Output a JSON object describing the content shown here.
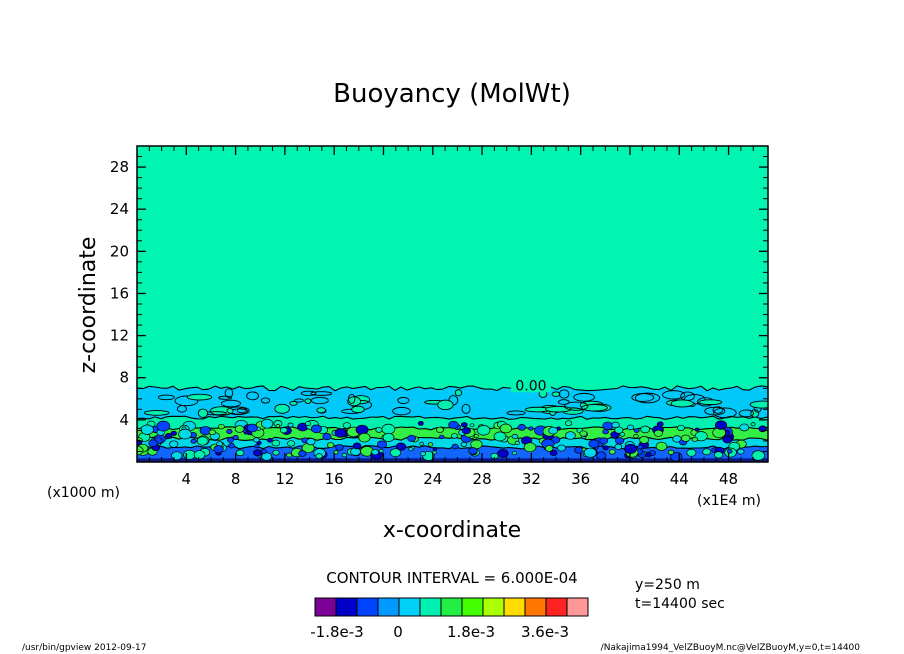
{
  "chart_data": {
    "type": "contour",
    "title": "Buoyancy (MolWt)",
    "xlabel": "x-coordinate",
    "ylabel": "z-coordinate",
    "x_unit": "(x1E4 m)",
    "y_unit": "(x1000 m)",
    "x_ticks": [
      4,
      8,
      12,
      16,
      20,
      24,
      28,
      32,
      36,
      40,
      44,
      48
    ],
    "y_ticks": [
      4,
      8,
      12,
      16,
      20,
      24,
      28
    ],
    "xlim": [
      0,
      51.2
    ],
    "ylim": [
      0,
      30
    ],
    "contour_label": "0.00",
    "contour_interval_text": "CONTOUR INTERVAL = 6.000E-04",
    "info": [
      "y=250 m",
      "t=14400 sec"
    ],
    "colorbar": {
      "colors": [
        "#7a0096",
        "#0000c8",
        "#0044ff",
        "#0099ff",
        "#00d0f8",
        "#00f0b0",
        "#22ee44",
        "#44ff00",
        "#aaff00",
        "#ffdd00",
        "#ff7700",
        "#ff2222",
        "#ff9999"
      ],
      "labels": [
        "-1.8e-3",
        "0",
        "1.8e-3",
        "3.6e-3"
      ]
    },
    "layers": [
      {
        "name": "upper",
        "color": "#00f5b0",
        "z": [
          7,
          30
        ]
      },
      {
        "name": "middle",
        "color": "#00c8f8",
        "z": [
          4.2,
          7
        ]
      },
      {
        "name": "lower-green",
        "color": "#00f0b0",
        "z": [
          3.2,
          4.2
        ]
      },
      {
        "name": "band-green",
        "color": "#33ee44",
        "z": [
          2.2,
          3.2
        ]
      },
      {
        "name": "band-cyan",
        "color": "#00d8e8",
        "z": [
          1.4,
          2.2
        ]
      },
      {
        "name": "band-blue",
        "color": "#1166ff",
        "z": [
          0.3,
          1.4
        ]
      }
    ]
  },
  "footer": {
    "left": "/usr/bin/gpview   2012-09-17",
    "right": "/Nakajima1994_VelZBuoyM.nc@VelZBuoyM,y=0,t=14400"
  }
}
